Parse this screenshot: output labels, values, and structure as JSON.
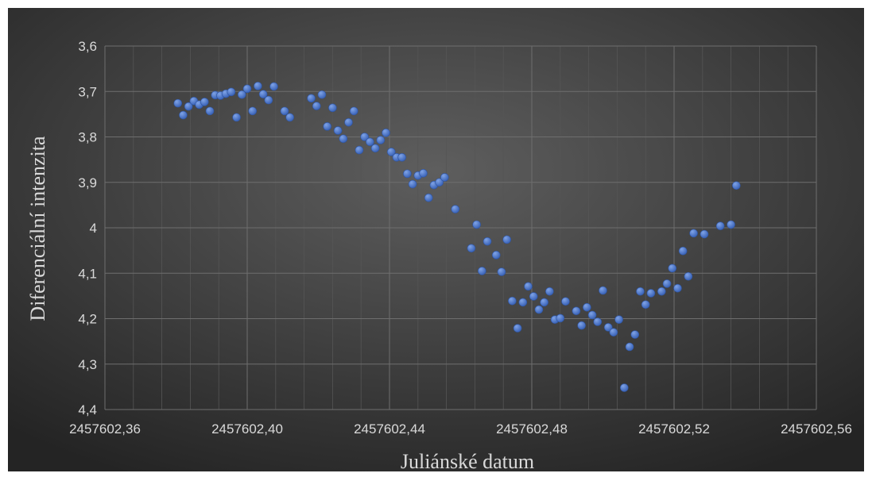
{
  "chart_data": {
    "type": "scatter",
    "title": "",
    "xlabel": "Juliánské datum",
    "ylabel": "Diferenciální intenzita",
    "xlim": [
      2457602.36,
      2457602.56
    ],
    "ylim": [
      3.6,
      4.4
    ],
    "y_reversed": true,
    "grid": true,
    "legend": "none",
    "x_ticks": [
      "2457602,36",
      "2457602,40",
      "2457602,44",
      "2457602,48",
      "2457602,52",
      "2457602,56"
    ],
    "y_ticks": [
      "3,6",
      "3,7",
      "3,8",
      "3,9",
      "4",
      "4,1",
      "4,2",
      "4,3",
      "4,4"
    ],
    "colors": {
      "background_top": "#5a5a5a",
      "background_bottom": "#262626",
      "marker": "#4472c4",
      "grid": "#6e6e6e",
      "text": "#d9d9d9"
    },
    "series": [
      {
        "points": [
          [
            2457602.3805,
            3.726
          ],
          [
            2457602.382,
            3.752
          ],
          [
            2457602.3835,
            3.733
          ],
          [
            2457602.385,
            3.721
          ],
          [
            2457602.3865,
            3.729
          ],
          [
            2457602.388,
            3.723
          ],
          [
            2457602.3895,
            3.743
          ],
          [
            2457602.391,
            3.708
          ],
          [
            2457602.3925,
            3.709
          ],
          [
            2457602.394,
            3.705
          ],
          [
            2457602.3955,
            3.701
          ],
          [
            2457602.397,
            3.757
          ],
          [
            2457602.3985,
            3.707
          ],
          [
            2457602.4,
            3.694
          ],
          [
            2457602.4015,
            3.743
          ],
          [
            2457602.403,
            3.688
          ],
          [
            2457602.4045,
            3.706
          ],
          [
            2457602.406,
            3.719
          ],
          [
            2457602.4075,
            3.689
          ],
          [
            2457602.4105,
            3.743
          ],
          [
            2457602.412,
            3.757
          ],
          [
            2457602.418,
            3.715
          ],
          [
            2457602.4195,
            3.732
          ],
          [
            2457602.421,
            3.707
          ],
          [
            2457602.4225,
            3.777
          ],
          [
            2457602.424,
            3.736
          ],
          [
            2457602.4255,
            3.786
          ],
          [
            2457602.427,
            3.804
          ],
          [
            2457602.4285,
            3.768
          ],
          [
            2457602.43,
            3.743
          ],
          [
            2457602.4315,
            3.829
          ],
          [
            2457602.433,
            3.8
          ],
          [
            2457602.4345,
            3.811
          ],
          [
            2457602.436,
            3.825
          ],
          [
            2457602.4375,
            3.807
          ],
          [
            2457602.439,
            3.791
          ],
          [
            2457602.4405,
            3.833
          ],
          [
            2457602.442,
            3.845
          ],
          [
            2457602.4435,
            3.845
          ],
          [
            2457602.445,
            3.881
          ],
          [
            2457602.4465,
            3.904
          ],
          [
            2457602.448,
            3.885
          ],
          [
            2457602.4495,
            3.88
          ],
          [
            2457602.451,
            3.934
          ],
          [
            2457602.4525,
            3.906
          ],
          [
            2457602.454,
            3.9
          ],
          [
            2457602.4555,
            3.889
          ],
          [
            2457602.4585,
            3.959
          ],
          [
            2457602.463,
            4.045
          ],
          [
            2457602.4645,
            3.993
          ],
          [
            2457602.466,
            4.095
          ],
          [
            2457602.4675,
            4.03
          ],
          [
            2457602.47,
            4.06
          ],
          [
            2457602.4715,
            4.097
          ],
          [
            2457602.473,
            4.026
          ],
          [
            2457602.4745,
            4.161
          ],
          [
            2457602.476,
            4.221
          ],
          [
            2457602.4775,
            4.164
          ],
          [
            2457602.479,
            4.129
          ],
          [
            2457602.4805,
            4.151
          ],
          [
            2457602.482,
            4.18
          ],
          [
            2457602.4835,
            4.164
          ],
          [
            2457602.485,
            4.14
          ],
          [
            2457602.4865,
            4.202
          ],
          [
            2457602.488,
            4.199
          ],
          [
            2457602.4895,
            4.162
          ],
          [
            2457602.4925,
            4.183
          ],
          [
            2457602.494,
            4.215
          ],
          [
            2457602.4955,
            4.175
          ],
          [
            2457602.497,
            4.192
          ],
          [
            2457602.4985,
            4.207
          ],
          [
            2457602.5,
            4.138
          ],
          [
            2457602.5015,
            4.219
          ],
          [
            2457602.503,
            4.23
          ],
          [
            2457602.5045,
            4.202
          ],
          [
            2457602.506,
            4.352
          ],
          [
            2457602.5075,
            4.262
          ],
          [
            2457602.509,
            4.235
          ],
          [
            2457602.5105,
            4.14
          ],
          [
            2457602.512,
            4.169
          ],
          [
            2457602.5135,
            4.144
          ],
          [
            2457602.5165,
            4.14
          ],
          [
            2457602.518,
            4.123
          ],
          [
            2457602.5195,
            4.089
          ],
          [
            2457602.521,
            4.133
          ],
          [
            2457602.5225,
            4.051
          ],
          [
            2457602.524,
            4.107
          ],
          [
            2457602.5255,
            4.012
          ],
          [
            2457602.5285,
            4.014
          ],
          [
            2457602.533,
            3.996
          ],
          [
            2457602.536,
            3.993
          ],
          [
            2457602.5375,
            3.907
          ]
        ]
      }
    ]
  }
}
